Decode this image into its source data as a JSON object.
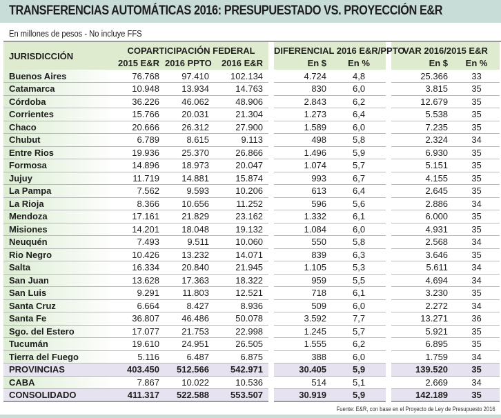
{
  "title": "TRANSFERENCIAS AUTOMÁTICAS 2016: PRESUPUESTADO VS. PROYECCIÓN E&R",
  "subtitle": "En millones de pesos - No incluye FFS",
  "source": "Fuente: E&R, con base en el Proyecto de Ley de Presupuesto 2016",
  "colors": {
    "title_bg": "#c9ddd8",
    "header_bg": "#dfebcf",
    "total_bg": "#e6e2ef",
    "divider": "#b8b8b8"
  },
  "header": {
    "jurisdiccion": "JURISDICCIÓN",
    "group1": "COPARTICIPACIÓN FEDERAL",
    "group2": "DIFERENCIAL 2016 E&R/PPTO",
    "group3": "VAR 2016/2015 E&R",
    "cols": [
      "2015 E&R",
      "2016 PPTO",
      "2016 E&R",
      "En $",
      "En %",
      "En $",
      "En %"
    ]
  },
  "rows": [
    {
      "name": "Buenos Aires",
      "c2015": "76.768",
      "ppto": "97.410",
      "er2016": "102.134",
      "dif": "4.724",
      "difp": "4,8",
      "var": "25.366",
      "varp": "33"
    },
    {
      "name": "Catamarca",
      "c2015": "10.948",
      "ppto": "13.934",
      "er2016": "14.763",
      "dif": "830",
      "difp": "6,0",
      "var": "3.815",
      "varp": "35"
    },
    {
      "name": "Córdoba",
      "c2015": "36.226",
      "ppto": "46.062",
      "er2016": "48.906",
      "dif": "2.843",
      "difp": "6,2",
      "var": "12.679",
      "varp": "35"
    },
    {
      "name": "Corrientes",
      "c2015": "15.766",
      "ppto": "20.031",
      "er2016": "21.304",
      "dif": "1.273",
      "difp": "6,4",
      "var": "5.538",
      "varp": "35"
    },
    {
      "name": "Chaco",
      "c2015": "20.666",
      "ppto": "26.312",
      "er2016": "27.900",
      "dif": "1.589",
      "difp": "6,0",
      "var": "7.235",
      "varp": "35"
    },
    {
      "name": "Chubut",
      "c2015": "6.789",
      "ppto": "8.615",
      "er2016": "9.113",
      "dif": "498",
      "difp": "5,8",
      "var": "2.324",
      "varp": "34"
    },
    {
      "name": "Entre Rios",
      "c2015": "19.936",
      "ppto": "25.370",
      "er2016": "26.866",
      "dif": "1.496",
      "difp": "5,9",
      "var": "6.930",
      "varp": "35"
    },
    {
      "name": "Formosa",
      "c2015": "14.896",
      "ppto": "18.973",
      "er2016": "20.047",
      "dif": "1.074",
      "difp": "5,7",
      "var": "5.151",
      "varp": "35"
    },
    {
      "name": "Jujuy",
      "c2015": "11.719",
      "ppto": "14.881",
      "er2016": "15.874",
      "dif": "993",
      "difp": "6,7",
      "var": "4.155",
      "varp": "35"
    },
    {
      "name": "La Pampa",
      "c2015": "7.562",
      "ppto": "9.593",
      "er2016": "10.206",
      "dif": "613",
      "difp": "6,4",
      "var": "2.645",
      "varp": "35"
    },
    {
      "name": "La Rioja",
      "c2015": "8.366",
      "ppto": "10.656",
      "er2016": "11.252",
      "dif": "596",
      "difp": "5,6",
      "var": "2.886",
      "varp": "34"
    },
    {
      "name": "Mendoza",
      "c2015": "17.161",
      "ppto": "21.829",
      "er2016": "23.162",
      "dif": "1.332",
      "difp": "6,1",
      "var": "6.000",
      "varp": "35"
    },
    {
      "name": "Misiones",
      "c2015": "14.201",
      "ppto": "18.048",
      "er2016": "19.132",
      "dif": "1.084",
      "difp": "6,0",
      "var": "4.931",
      "varp": "35"
    },
    {
      "name": "Neuquén",
      "c2015": "7.493",
      "ppto": "9.511",
      "er2016": "10.060",
      "dif": "550",
      "difp": "5,8",
      "var": "2.568",
      "varp": "34"
    },
    {
      "name": "Rio Negro",
      "c2015": "10.426",
      "ppto": "13.232",
      "er2016": "14.071",
      "dif": "839",
      "difp": "6,3",
      "var": "3.646",
      "varp": "35"
    },
    {
      "name": "Salta",
      "c2015": "16.334",
      "ppto": "20.840",
      "er2016": "21.945",
      "dif": "1.105",
      "difp": "5,3",
      "var": "5.611",
      "varp": "34"
    },
    {
      "name": "San Juan",
      "c2015": "13.628",
      "ppto": "17.363",
      "er2016": "18.322",
      "dif": "959",
      "difp": "5,5",
      "var": "4.694",
      "varp": "34"
    },
    {
      "name": "San Luis",
      "c2015": "9.291",
      "ppto": "11.803",
      "er2016": "12.521",
      "dif": "718",
      "difp": "6,1",
      "var": "3.230",
      "varp": "35"
    },
    {
      "name": "Santa Cruz",
      "c2015": "6.664",
      "ppto": "8.427",
      "er2016": "8.936",
      "dif": "509",
      "difp": "6,0",
      "var": "2.272",
      "varp": "34"
    },
    {
      "name": "Santa Fe",
      "c2015": "36.807",
      "ppto": "46.486",
      "er2016": "50.078",
      "dif": "3.592",
      "difp": "7,7",
      "var": "13.271",
      "varp": "36"
    },
    {
      "name": "Sgo. del Estero",
      "c2015": "17.077",
      "ppto": "21.753",
      "er2016": "22.998",
      "dif": "1.245",
      "difp": "5,7",
      "var": "5.921",
      "varp": "35"
    },
    {
      "name": "Tucumán",
      "c2015": "19.610",
      "ppto": "24.951",
      "er2016": "26.505",
      "dif": "1.555",
      "difp": "6,2",
      "var": "6.895",
      "varp": "35"
    },
    {
      "name": "Tierra del Fuego",
      "c2015": "5.116",
      "ppto": "6.487",
      "er2016": "6.875",
      "dif": "388",
      "difp": "6,0",
      "var": "1.759",
      "varp": "34"
    },
    {
      "name": "PROVINCIAS",
      "c2015": "403.450",
      "ppto": "512.566",
      "er2016": "542.971",
      "dif": "30.405",
      "difp": "5,9",
      "var": "139.520",
      "varp": "35"
    },
    {
      "name": "CABA",
      "c2015": "7.867",
      "ppto": "10.022",
      "er2016": "10.536",
      "dif": "514",
      "difp": "5,1",
      "var": "2.669",
      "varp": "34"
    },
    {
      "name": "CONSOLIDADO",
      "c2015": "411.317",
      "ppto": "522.588",
      "er2016": "553.507",
      "dif": "30.919",
      "difp": "5,9",
      "var": "142.189",
      "varp": "35"
    }
  ]
}
